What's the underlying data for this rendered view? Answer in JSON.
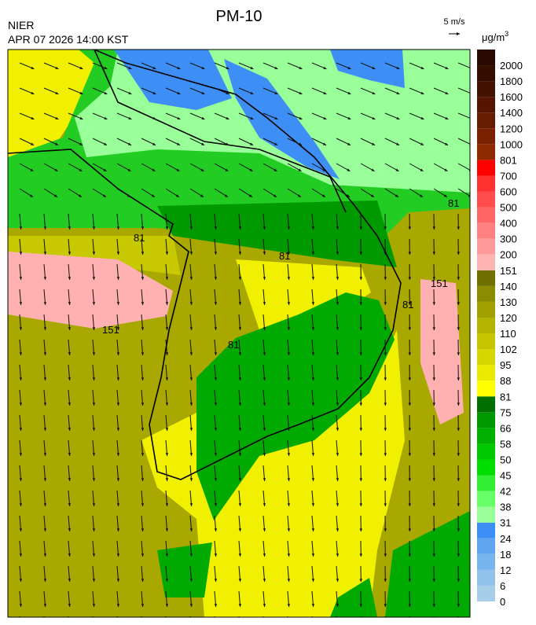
{
  "header": {
    "title": "PM-10",
    "agency": "NIER",
    "datetime": "APR 07 2026 14:00 KST",
    "wind_scale": "5 m/s",
    "unit": "μg/m",
    "unit_power": "3"
  },
  "colorbar": [
    {
      "label": "0",
      "color": "#a6cee8"
    },
    {
      "label": "6",
      "color": "#90c2ec"
    },
    {
      "label": "12",
      "color": "#78b4ee"
    },
    {
      "label": "18",
      "color": "#5ea6f0"
    },
    {
      "label": "24",
      "color": "#3d8ff5"
    },
    {
      "label": "31",
      "color": "#99ff99"
    },
    {
      "label": "38",
      "color": "#66ff66"
    },
    {
      "label": "42",
      "color": "#33ee33"
    },
    {
      "label": "45",
      "color": "#00dd00"
    },
    {
      "label": "50",
      "color": "#00c800"
    },
    {
      "label": "58",
      "color": "#00b000"
    },
    {
      "label": "66",
      "color": "#009800"
    },
    {
      "label": "75",
      "color": "#006e00"
    },
    {
      "label": "81",
      "color": "#ffff00"
    },
    {
      "label": "88",
      "color": "#eaea00"
    },
    {
      "label": "95",
      "color": "#d6d600"
    },
    {
      "label": "102",
      "color": "#c6c600"
    },
    {
      "label": "110",
      "color": "#b4b400"
    },
    {
      "label": "120",
      "color": "#a0a000"
    },
    {
      "label": "130",
      "color": "#8c8c00"
    },
    {
      "label": "140",
      "color": "#707000"
    },
    {
      "label": "151",
      "color": "#ffb4b4"
    },
    {
      "label": "200",
      "color": "#ff9a9a"
    },
    {
      "label": "300",
      "color": "#ff8080"
    },
    {
      "label": "400",
      "color": "#ff6666"
    },
    {
      "label": "500",
      "color": "#ff4c4c"
    },
    {
      "label": "600",
      "color": "#ff3030"
    },
    {
      "label": "700",
      "color": "#ff0000"
    },
    {
      "label": "801",
      "color": "#8e2a00"
    },
    {
      "label": "1000",
      "color": "#7a2200"
    },
    {
      "label": "1200",
      "color": "#661c00"
    },
    {
      "label": "1400",
      "color": "#541600"
    },
    {
      "label": "1600",
      "color": "#441200"
    },
    {
      "label": "1800",
      "color": "#360e00"
    },
    {
      "label": "2000",
      "color": "#2a0a00"
    }
  ],
  "contour_labels": [
    "81",
    "81",
    "151",
    "81",
    "81",
    "151",
    "81"
  ]
}
